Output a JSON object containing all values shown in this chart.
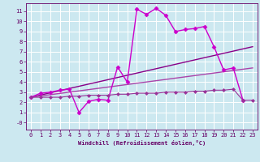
{
  "background_color": "#cce8f0",
  "grid_color": "#ffffff",
  "xlabel": "Windchill (Refroidissement éolien,°C)",
  "xlabel_color": "#660066",
  "tick_color": "#660066",
  "spine_color": "#660066",
  "xlim": [
    -0.5,
    23.5
  ],
  "ylim": [
    -0.7,
    11.8
  ],
  "yticks": [
    0,
    1,
    2,
    3,
    4,
    5,
    6,
    7,
    8,
    9,
    10,
    11
  ],
  "ytick_labels": [
    "-0",
    "1",
    "2",
    "3",
    "4",
    "5",
    "6",
    "7",
    "8",
    "9",
    "10",
    "11"
  ],
  "xticks": [
    0,
    1,
    2,
    3,
    4,
    5,
    6,
    7,
    8,
    9,
    10,
    11,
    12,
    13,
    14,
    15,
    16,
    17,
    18,
    19,
    20,
    21,
    22,
    23
  ],
  "series": [
    {
      "x": [
        0,
        1,
        2,
        3,
        4,
        5,
        6,
        7,
        8,
        9,
        10,
        11,
        12,
        13,
        14,
        15,
        16,
        17,
        18,
        19,
        20,
        21,
        22
      ],
      "y": [
        2.5,
        2.9,
        3.0,
        3.2,
        3.3,
        1.0,
        2.1,
        2.3,
        2.2,
        5.5,
        4.0,
        11.2,
        10.7,
        11.3,
        10.6,
        9.0,
        9.2,
        9.3,
        9.5,
        7.5,
        5.2,
        5.4,
        2.2
      ],
      "color": "#cc00cc",
      "marker": "D",
      "markersize": 2.5,
      "linewidth": 1.0
    },
    {
      "x": [
        0,
        23
      ],
      "y": [
        2.5,
        7.5
      ],
      "color": "#880088",
      "marker": null,
      "markersize": 0,
      "linewidth": 1.0
    },
    {
      "x": [
        0,
        23
      ],
      "y": [
        2.5,
        5.4
      ],
      "color": "#aa44aa",
      "marker": null,
      "markersize": 0,
      "linewidth": 1.0
    },
    {
      "x": [
        0,
        1,
        2,
        3,
        4,
        5,
        6,
        7,
        8,
        9,
        10,
        11,
        12,
        13,
        14,
        15,
        16,
        17,
        18,
        19,
        20,
        21,
        22,
        23
      ],
      "y": [
        2.5,
        2.5,
        2.5,
        2.5,
        2.6,
        2.6,
        2.7,
        2.7,
        2.7,
        2.8,
        2.8,
        2.9,
        2.9,
        2.9,
        3.0,
        3.0,
        3.0,
        3.1,
        3.1,
        3.2,
        3.2,
        3.3,
        2.2,
        2.2
      ],
      "color": "#993399",
      "marker": "D",
      "markersize": 2.0,
      "linewidth": 0.8
    }
  ]
}
